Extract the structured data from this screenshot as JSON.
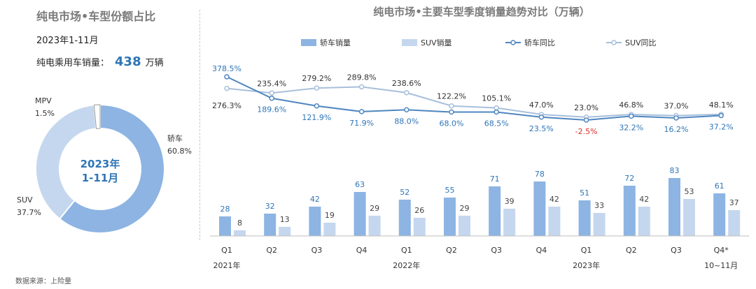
{
  "left": {
    "title": "纯电市场•车型份额占比",
    "period": "2023年1-11月",
    "total_label": "纯电乘用车销量：",
    "total_value": "438",
    "total_unit": "万辆",
    "center_line1": "2023年",
    "center_line2": "1-11月"
  },
  "source": "数据来源：上险量",
  "colors": {
    "sedan": "#8db4e2",
    "suv": "#c5d7ee",
    "mpv": "#ffffff",
    "sedan_yoy": "#4f86c0",
    "suv_yoy": "#a7bfdc",
    "sedan_label": "#2e75b6",
    "negative": "#d9302c"
  },
  "chart_data": [
    {
      "type": "pie",
      "title": "纯电市场•车型份额占比",
      "donut": true,
      "slices": [
        {
          "label": "轿车",
          "value": 60.8,
          "display": "60.8%"
        },
        {
          "label": "SUV",
          "value": 37.7,
          "display": "37.7%"
        },
        {
          "label": "MPV",
          "value": 1.5,
          "display": "1.5%"
        }
      ]
    },
    {
      "type": "bar",
      "title": "纯电市场•主要车型季度销量趋势对比（万辆）",
      "categories": [
        "Q1",
        "Q2",
        "Q3",
        "Q4",
        "Q1",
        "Q2",
        "Q3",
        "Q4",
        "Q1",
        "Q2",
        "Q3",
        "Q4*"
      ],
      "year_labels": [
        {
          "label": "2021年",
          "index": 0
        },
        {
          "label": "2022年",
          "index": 4
        },
        {
          "label": "2023年",
          "index": 8
        },
        {
          "label": "10~11月",
          "index": 11
        }
      ],
      "series": [
        {
          "name": "轿车销量",
          "kind": "bar",
          "values": [
            28,
            32,
            42,
            63,
            52,
            55,
            71,
            78,
            51,
            72,
            83,
            61
          ]
        },
        {
          "name": "SUV销量",
          "kind": "bar",
          "values": [
            8,
            13,
            19,
            29,
            26,
            29,
            39,
            42,
            33,
            42,
            53,
            37
          ]
        },
        {
          "name": "轿车同比",
          "kind": "line",
          "values": [
            378.5,
            189.6,
            121.9,
            71.9,
            88.0,
            68.0,
            68.5,
            23.5,
            -2.5,
            32.2,
            16.2,
            37.2
          ],
          "labels": [
            "378.5%",
            "189.6%",
            "121.9%",
            "71.9%",
            "88.0%",
            "68.0%",
            "68.5%",
            "23.5%",
            "-2.5%",
            "32.2%",
            "16.2%",
            "37.2%"
          ]
        },
        {
          "name": "SUV同比",
          "kind": "line",
          "values": [
            276.3,
            235.4,
            279.2,
            289.8,
            238.6,
            122.2,
            105.1,
            47.0,
            23.0,
            46.8,
            37.0,
            48.1
          ],
          "labels": [
            "276.3%",
            "235.4%",
            "279.2%",
            "289.8%",
            "238.6%",
            "122.2%",
            "105.1%",
            "47.0%",
            "23.0%",
            "46.8%",
            "37.0%",
            "48.1%"
          ]
        }
      ]
    }
  ]
}
